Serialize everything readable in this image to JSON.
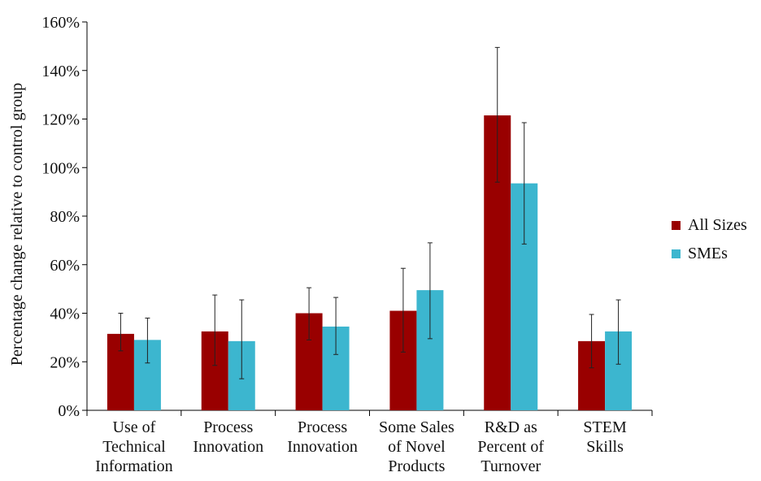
{
  "chart_data": {
    "type": "bar",
    "title": "",
    "xlabel": "",
    "ylabel": "Percentage change relative to control group",
    "ylim": [
      0,
      160
    ],
    "yticks": [
      0,
      20,
      40,
      60,
      80,
      100,
      120,
      140,
      160
    ],
    "ytick_labels": [
      "0%",
      "20%",
      "40%",
      "60%",
      "80%",
      "100%",
      "120%",
      "140%",
      "160%"
    ],
    "grid": false,
    "legend_position": "right",
    "categories": [
      [
        "Use of",
        "Technical",
        "Information"
      ],
      [
        "Process",
        "Innovation"
      ],
      [
        "Process",
        "Innovation"
      ],
      [
        "Some Sales",
        "of Novel",
        "Products"
      ],
      [
        "R&D as",
        "Percent of",
        "Turnover"
      ],
      [
        "STEM",
        "Skills"
      ]
    ],
    "series": [
      {
        "name": "All Sizes",
        "color": "#990000",
        "values": [
          31.5,
          32.5,
          40,
          41,
          121.5,
          28.5
        ],
        "error_low": [
          24.5,
          18.5,
          29,
          24,
          94,
          17.5
        ],
        "error_high": [
          40,
          47.5,
          50.5,
          58.5,
          149.5,
          39.5
        ]
      },
      {
        "name": "SMEs",
        "color": "#3cb6cf",
        "values": [
          29,
          28.5,
          34.5,
          49.5,
          93.5,
          32.5
        ],
        "error_low": [
          19.5,
          13,
          23,
          29.5,
          68.5,
          19
        ],
        "error_high": [
          38,
          45.5,
          46.5,
          69,
          118.5,
          45.5
        ]
      }
    ]
  }
}
